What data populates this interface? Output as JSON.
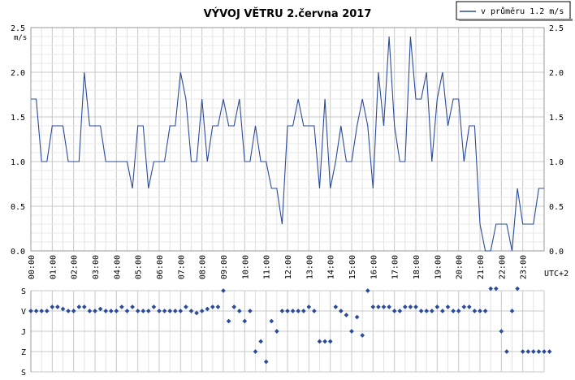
{
  "chart_data": [
    {
      "type": "line",
      "title": "VÝVOJ VĚTRU  2.června 2017",
      "ylabel": "m/s",
      "xlabel": "UTC+2",
      "ylim": [
        0,
        2.5
      ],
      "y_ticks": [
        "0.0",
        "0.5",
        "1.0",
        "1.5",
        "2.0",
        "2.5"
      ],
      "x_ticks": [
        "00:00",
        "01:00",
        "02:00",
        "03:00",
        "04:00",
        "05:00",
        "06:00",
        "07:00",
        "08:00",
        "09:00",
        "10:00",
        "11:00",
        "12:00",
        "13:00",
        "14:00",
        "15:00",
        "16:00",
        "17:00",
        "18:00",
        "19:00",
        "20:00",
        "21:00",
        "22:00",
        "23:00"
      ],
      "grid": true,
      "legend_position": "top-right",
      "series": [
        {
          "name": "v průměru 1.2 m/s",
          "color": "#2a4b9b",
          "points_per_hour": 4,
          "values": [
            1.7,
            1.7,
            1.0,
            1.0,
            1.4,
            1.4,
            1.4,
            1.0,
            1.0,
            1.0,
            2.0,
            1.4,
            1.4,
            1.4,
            1.0,
            1.0,
            1.0,
            1.0,
            1.0,
            0.7,
            1.4,
            1.4,
            0.7,
            1.0,
            1.0,
            1.0,
            1.4,
            1.4,
            2.0,
            1.7,
            1.0,
            1.0,
            1.7,
            1.0,
            1.4,
            1.4,
            1.7,
            1.4,
            1.4,
            1.7,
            1.0,
            1.0,
            1.4,
            1.0,
            1.0,
            0.7,
            0.7,
            0.3,
            1.4,
            1.4,
            1.7,
            1.4,
            1.4,
            1.4,
            0.7,
            1.7,
            0.7,
            1.0,
            1.4,
            1.0,
            1.0,
            1.4,
            1.7,
            1.4,
            0.7,
            2.0,
            1.4,
            2.4,
            1.4,
            1.0,
            1.0,
            2.4,
            1.7,
            1.7,
            2.0,
            1.0,
            1.7,
            2.0,
            1.4,
            1.7,
            1.7,
            1.0,
            1.4,
            1.4,
            0.3,
            0.0,
            0.0,
            0.3,
            0.3,
            0.3,
            0.0,
            0.7,
            0.3,
            0.3,
            0.3,
            0.7,
            0.7
          ]
        }
      ]
    },
    {
      "type": "scatter",
      "ylabel": "",
      "y_ticks": [
        "S",
        "V",
        "J",
        "Z",
        "S"
      ],
      "ylim": [
        0,
        4
      ],
      "points_per_hour": 4,
      "color": "#2a4b9b",
      "values": [
        3,
        3,
        3,
        3,
        3.2,
        3.2,
        3.1,
        3,
        3,
        3.2,
        3.2,
        3,
        3,
        3.1,
        3,
        3,
        3,
        3.2,
        3,
        3.2,
        3,
        3,
        3,
        3.2,
        3,
        3,
        3,
        3,
        3,
        3.2,
        3,
        2.9,
        3,
        3.1,
        3.2,
        3.2,
        4,
        2.5,
        3.2,
        3,
        2.5,
        3,
        1,
        1.5,
        0.5,
        2.5,
        2,
        3,
        3,
        3,
        3,
        3,
        3.2,
        3,
        1.5,
        1.5,
        1.5,
        3.2,
        3,
        2.8,
        2,
        2.7,
        1.8,
        4,
        3.2,
        3.2,
        3.2,
        3.2,
        3,
        3,
        3.2,
        3.2,
        3.2,
        3,
        3,
        3,
        3.2,
        3,
        3.2,
        3,
        3,
        3.2,
        3.2,
        3,
        3,
        3,
        4.1,
        4.1,
        2,
        1,
        3,
        4.1,
        1,
        1,
        1,
        1,
        1,
        1
      ]
    }
  ],
  "legend": {
    "label": "v průměru 1.2 m/s"
  }
}
